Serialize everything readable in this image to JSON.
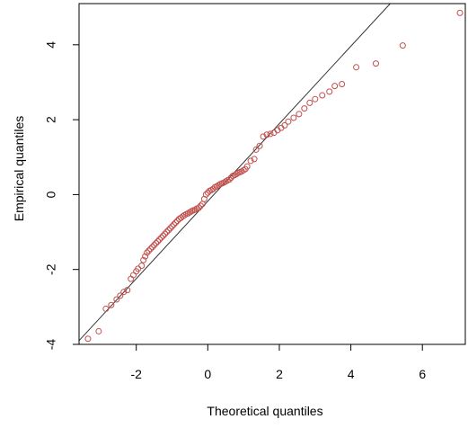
{
  "chart_data": {
    "type": "scatter",
    "title": "",
    "xlabel": "Theoretical quantiles",
    "ylabel": "Empirical quantiles",
    "xlim": [
      -3.6,
      7.2
    ],
    "ylim": [
      -4.0,
      5.1
    ],
    "x_ticks": [
      -2,
      0,
      2,
      4,
      6
    ],
    "x_tick_labels": [
      "-2",
      "0",
      "2",
      "4",
      "6"
    ],
    "y_ticks": [
      -4,
      -2,
      0,
      2,
      4
    ],
    "y_tick_labels": [
      "-4",
      "-2",
      "0",
      "2",
      "4"
    ],
    "grid": false,
    "legend": "none",
    "point_color": "#c0504d",
    "line_color": "#333333",
    "reference_line": {
      "x1": -3.6,
      "y1": -3.9,
      "x2": 5.1,
      "y2": 5.1
    },
    "points": [
      [
        -3.35,
        -3.85
      ],
      [
        -3.05,
        -3.65
      ],
      [
        -2.85,
        -3.05
      ],
      [
        -2.7,
        -2.95
      ],
      [
        -2.55,
        -2.8
      ],
      [
        -2.45,
        -2.7
      ],
      [
        -2.35,
        -2.6
      ],
      [
        -2.25,
        -2.55
      ],
      [
        -2.15,
        -2.25
      ],
      [
        -2.08,
        -2.15
      ],
      [
        -2.0,
        -2.05
      ],
      [
        -1.95,
        -1.98
      ],
      [
        -1.85,
        -1.9
      ],
      [
        -1.8,
        -1.75
      ],
      [
        -1.75,
        -1.65
      ],
      [
        -1.7,
        -1.55
      ],
      [
        -1.65,
        -1.5
      ],
      [
        -1.6,
        -1.45
      ],
      [
        -1.55,
        -1.4
      ],
      [
        -1.5,
        -1.35
      ],
      [
        -1.45,
        -1.3
      ],
      [
        -1.4,
        -1.25
      ],
      [
        -1.35,
        -1.2
      ],
      [
        -1.3,
        -1.15
      ],
      [
        -1.25,
        -1.1
      ],
      [
        -1.2,
        -1.05
      ],
      [
        -1.15,
        -1.0
      ],
      [
        -1.1,
        -0.95
      ],
      [
        -1.05,
        -0.9
      ],
      [
        -1.0,
        -0.85
      ],
      [
        -0.95,
        -0.8
      ],
      [
        -0.9,
        -0.75
      ],
      [
        -0.85,
        -0.7
      ],
      [
        -0.8,
        -0.65
      ],
      [
        -0.75,
        -0.62
      ],
      [
        -0.7,
        -0.58
      ],
      [
        -0.65,
        -0.55
      ],
      [
        -0.6,
        -0.52
      ],
      [
        -0.55,
        -0.5
      ],
      [
        -0.5,
        -0.47
      ],
      [
        -0.45,
        -0.44
      ],
      [
        -0.4,
        -0.42
      ],
      [
        -0.35,
        -0.4
      ],
      [
        -0.3,
        -0.37
      ],
      [
        -0.25,
        -0.35
      ],
      [
        -0.2,
        -0.3
      ],
      [
        -0.15,
        -0.25
      ],
      [
        -0.1,
        -0.12
      ],
      [
        -0.05,
        0.0
      ],
      [
        0.0,
        0.05
      ],
      [
        0.05,
        0.1
      ],
      [
        0.1,
        0.12
      ],
      [
        0.15,
        0.15
      ],
      [
        0.2,
        0.2
      ],
      [
        0.25,
        0.22
      ],
      [
        0.3,
        0.25
      ],
      [
        0.35,
        0.28
      ],
      [
        0.4,
        0.3
      ],
      [
        0.45,
        0.32
      ],
      [
        0.5,
        0.35
      ],
      [
        0.55,
        0.38
      ],
      [
        0.6,
        0.4
      ],
      [
        0.65,
        0.45
      ],
      [
        0.7,
        0.5
      ],
      [
        0.75,
        0.52
      ],
      [
        0.8,
        0.55
      ],
      [
        0.85,
        0.58
      ],
      [
        0.9,
        0.6
      ],
      [
        0.95,
        0.62
      ],
      [
        1.0,
        0.65
      ],
      [
        1.05,
        0.68
      ],
      [
        1.1,
        0.75
      ],
      [
        1.2,
        0.9
      ],
      [
        1.3,
        0.95
      ],
      [
        1.35,
        1.2
      ],
      [
        1.45,
        1.3
      ],
      [
        1.55,
        1.55
      ],
      [
        1.65,
        1.6
      ],
      [
        1.75,
        1.62
      ],
      [
        1.85,
        1.65
      ],
      [
        1.95,
        1.72
      ],
      [
        2.05,
        1.78
      ],
      [
        2.15,
        1.85
      ],
      [
        2.25,
        1.95
      ],
      [
        2.4,
        2.05
      ],
      [
        2.55,
        2.15
      ],
      [
        2.7,
        2.3
      ],
      [
        2.85,
        2.45
      ],
      [
        3.0,
        2.55
      ],
      [
        3.2,
        2.65
      ],
      [
        3.4,
        2.75
      ],
      [
        3.55,
        2.9
      ],
      [
        3.75,
        2.95
      ],
      [
        4.15,
        3.4
      ],
      [
        4.7,
        3.5
      ],
      [
        5.45,
        3.98
      ],
      [
        7.05,
        4.85
      ]
    ]
  }
}
